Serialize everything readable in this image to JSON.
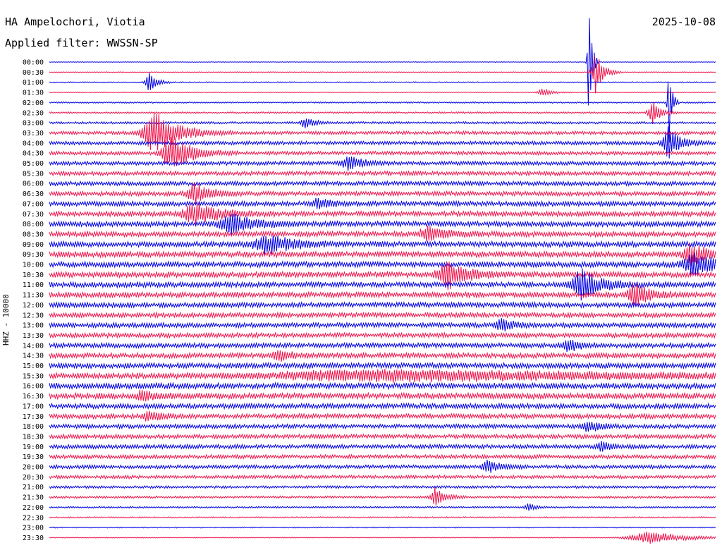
{
  "header": {
    "station": "HA Ampelochori, Viotia",
    "filter": "Applied filter: WWSSN-SP",
    "date": "2025-10-08",
    "channel": "HHZ - 10000"
  },
  "colors": {
    "odd": "#0000e6",
    "even": "#f0144c"
  },
  "chart_data": {
    "type": "line",
    "title": "HA Ampelochori, Viotia",
    "ylabel": "HHZ - 10000",
    "row_labels": [
      "00:00",
      "00:30",
      "01:00",
      "01:30",
      "02:00",
      "02:30",
      "03:00",
      "03:30",
      "04:00",
      "04:30",
      "05:00",
      "05:30",
      "06:00",
      "06:30",
      "07:00",
      "07:30",
      "08:00",
      "08:30",
      "09:00",
      "09:30",
      "10:00",
      "10:30",
      "11:00",
      "11:30",
      "12:00",
      "12:30",
      "13:00",
      "13:30",
      "14:00",
      "14:30",
      "15:00",
      "15:30",
      "16:00",
      "16:30",
      "17:00",
      "17:30",
      "18:00",
      "18:30",
      "19:00",
      "19:30",
      "20:00",
      "20:30",
      "21:00",
      "21:30",
      "22:00",
      "22:30",
      "23:00",
      "23:30"
    ],
    "row_noise": [
      0.4,
      0.6,
      0.8,
      0.6,
      1.0,
      1.2,
      1.6,
      2.4,
      2.6,
      2.6,
      2.8,
      3.0,
      3.0,
      3.2,
      3.4,
      3.6,
      3.8,
      3.8,
      4.0,
      4.0,
      4.0,
      4.0,
      3.8,
      3.8,
      3.6,
      3.4,
      3.4,
      3.4,
      3.4,
      3.6,
      3.8,
      4.0,
      4.2,
      4.2,
      3.6,
      3.4,
      3.0,
      3.0,
      3.0,
      2.8,
      2.6,
      2.4,
      1.8,
      1.6,
      1.2,
      1.0,
      0.8,
      0.6
    ],
    "events": [
      {
        "row": 0,
        "t": 0.81,
        "amp": 85,
        "dur": 0.004
      },
      {
        "row": 1,
        "t": 0.82,
        "amp": 30,
        "dur": 0.01
      },
      {
        "row": 2,
        "t": 0.15,
        "amp": 14,
        "dur": 0.01
      },
      {
        "row": 3,
        "t": 0.74,
        "amp": 6,
        "dur": 0.012
      },
      {
        "row": 4,
        "t": 0.93,
        "amp": 70,
        "dur": 0.004
      },
      {
        "row": 5,
        "t": 0.905,
        "amp": 18,
        "dur": 0.01
      },
      {
        "row": 6,
        "t": 0.385,
        "amp": 8,
        "dur": 0.012
      },
      {
        "row": 7,
        "t": 0.16,
        "amp": 30,
        "dur": 0.03
      },
      {
        "row": 8,
        "t": 0.93,
        "amp": 22,
        "dur": 0.015
      },
      {
        "row": 9,
        "t": 0.185,
        "amp": 26,
        "dur": 0.025
      },
      {
        "row": 10,
        "t": 0.45,
        "amp": 10,
        "dur": 0.02
      },
      {
        "row": 13,
        "t": 0.22,
        "amp": 15,
        "dur": 0.02
      },
      {
        "row": 14,
        "t": 0.405,
        "amp": 8,
        "dur": 0.015
      },
      {
        "row": 15,
        "t": 0.22,
        "amp": 16,
        "dur": 0.03
      },
      {
        "row": 16,
        "t": 0.275,
        "amp": 13,
        "dur": 0.03
      },
      {
        "row": 17,
        "t": 0.57,
        "amp": 9,
        "dur": 0.025
      },
      {
        "row": 18,
        "t": 0.33,
        "amp": 13,
        "dur": 0.035
      },
      {
        "row": 19,
        "t": 0.965,
        "amp": 16,
        "dur": 0.02
      },
      {
        "row": 20,
        "t": 0.97,
        "amp": 15,
        "dur": 0.03
      },
      {
        "row": 21,
        "t": 0.6,
        "amp": 20,
        "dur": 0.025
      },
      {
        "row": 22,
        "t": 0.8,
        "amp": 22,
        "dur": 0.025
      },
      {
        "row": 23,
        "t": 0.88,
        "amp": 16,
        "dur": 0.02
      },
      {
        "row": 26,
        "t": 0.68,
        "amp": 10,
        "dur": 0.015
      },
      {
        "row": 28,
        "t": 0.78,
        "amp": 9,
        "dur": 0.015
      },
      {
        "row": 29,
        "t": 0.345,
        "amp": 8,
        "dur": 0.015
      },
      {
        "row": 31,
        "t": 0.52,
        "amp": 7,
        "dur": 0.3
      },
      {
        "row": 33,
        "t": 0.14,
        "amp": 8,
        "dur": 0.015
      },
      {
        "row": 35,
        "t": 0.15,
        "amp": 7,
        "dur": 0.015
      },
      {
        "row": 36,
        "t": 0.81,
        "amp": 8,
        "dur": 0.015
      },
      {
        "row": 38,
        "t": 0.83,
        "amp": 7,
        "dur": 0.012
      },
      {
        "row": 40,
        "t": 0.66,
        "amp": 9,
        "dur": 0.015
      },
      {
        "row": 43,
        "t": 0.58,
        "amp": 14,
        "dur": 0.012
      },
      {
        "row": 44,
        "t": 0.72,
        "amp": 5,
        "dur": 0.01
      },
      {
        "row": 47,
        "t": 0.9,
        "amp": 9,
        "dur": 0.05
      }
    ],
    "grid": false
  }
}
